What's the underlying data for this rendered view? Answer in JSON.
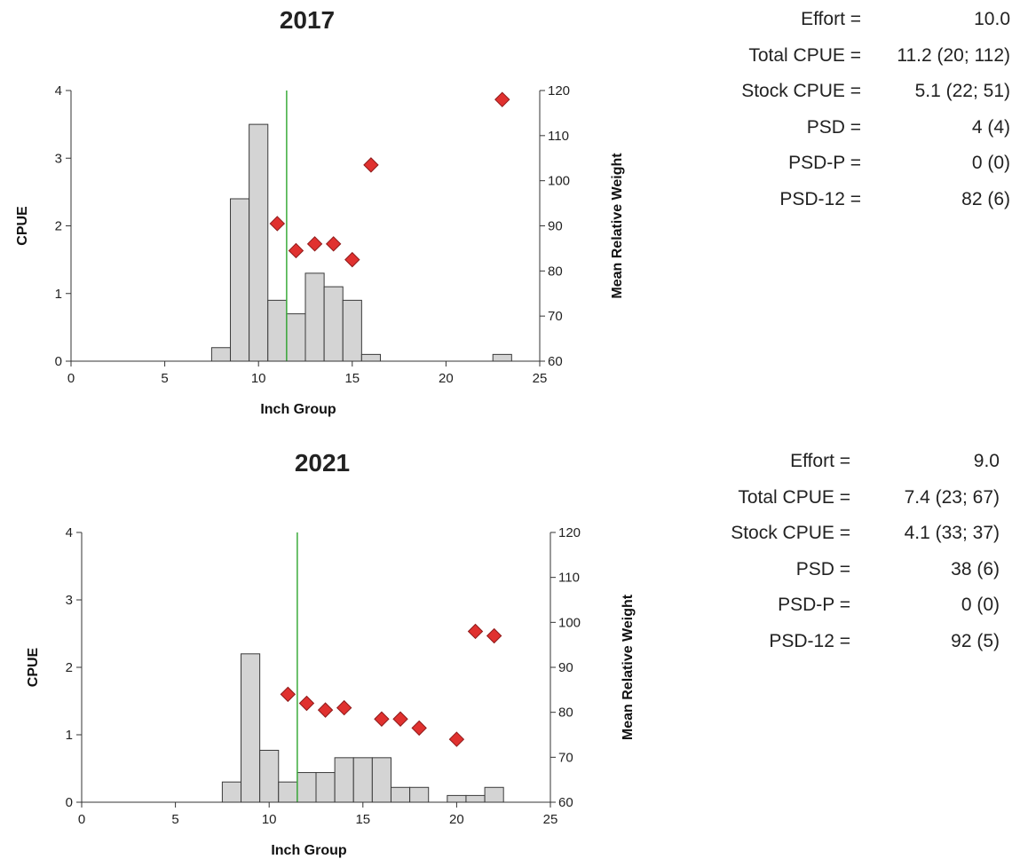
{
  "chart_data": [
    {
      "type": "bar",
      "title": "2017",
      "xlabel": "Inch Group",
      "ylabel": "CPUE",
      "y2label": "Mean Relative Weight",
      "xlim": [
        0,
        25
      ],
      "ylim": [
        0,
        4
      ],
      "y2lim": [
        60,
        120
      ],
      "xticks": [
        "0",
        "5",
        "10",
        "15",
        "20",
        "25"
      ],
      "yticks": [
        "0",
        "1",
        "2",
        "3",
        "4"
      ],
      "y2ticks": [
        "60",
        "70",
        "80",
        "90",
        "100",
        "110",
        "120"
      ],
      "reference_line_x": 11.5,
      "series": [
        {
          "kind": "bar",
          "axis": "CPUE",
          "x": [
            8,
            9,
            10,
            11,
            12,
            13,
            14,
            15,
            16,
            23
          ],
          "values": [
            0.2,
            2.4,
            3.5,
            0.9,
            0.7,
            1.3,
            1.1,
            0.9,
            0.1,
            0.1
          ]
        },
        {
          "kind": "scatter",
          "axis": "Mean Relative Weight",
          "x": [
            11,
            12,
            13,
            14,
            15,
            16,
            23
          ],
          "values": [
            90.5,
            84.5,
            86,
            86,
            82.5,
            103.5,
            118
          ]
        }
      ],
      "stats": [
        {
          "label": "Effort =",
          "value": "10.0"
        },
        {
          "label": "Total CPUE =",
          "value": "11.2 (20; 112)"
        },
        {
          "label": "Stock CPUE =",
          "value": "5.1 (22; 51)"
        },
        {
          "label": "PSD =",
          "value": "4 (4)"
        },
        {
          "label": "PSD-P =",
          "value": "0 (0)"
        },
        {
          "label": "PSD-12 =",
          "value": "82 (6)"
        }
      ]
    },
    {
      "type": "bar",
      "title": "2021",
      "xlabel": "Inch Group",
      "ylabel": "CPUE",
      "y2label": "Mean Relative Weight",
      "xlim": [
        0,
        25
      ],
      "ylim": [
        0,
        4
      ],
      "y2lim": [
        60,
        120
      ],
      "xticks": [
        "0",
        "5",
        "10",
        "15",
        "20",
        "25"
      ],
      "yticks": [
        "0",
        "1",
        "2",
        "3",
        "4"
      ],
      "y2ticks": [
        "60",
        "70",
        "80",
        "90",
        "100",
        "110",
        "120"
      ],
      "reference_line_x": 11.5,
      "series": [
        {
          "kind": "bar",
          "axis": "CPUE",
          "x": [
            8,
            9,
            10,
            11,
            12,
            13,
            14,
            15,
            16,
            17,
            18,
            20,
            21,
            22
          ],
          "values": [
            0.3,
            2.2,
            0.77,
            0.3,
            0.44,
            0.44,
            0.66,
            0.66,
            0.66,
            0.22,
            0.22,
            0.1,
            0.1,
            0.22
          ]
        },
        {
          "kind": "scatter",
          "axis": "Mean Relative Weight",
          "x": [
            11,
            12,
            13,
            14,
            16,
            17,
            18,
            20,
            21,
            22
          ],
          "values": [
            84,
            82,
            80.5,
            81,
            78.5,
            78.5,
            76.5,
            74,
            98,
            97
          ]
        }
      ],
      "stats": [
        {
          "label": "Effort =",
          "value": "9.0"
        },
        {
          "label": "Total CPUE =",
          "value": "7.4 (23; 67)"
        },
        {
          "label": "Stock CPUE =",
          "value": "4.1 (33; 37)"
        },
        {
          "label": "PSD =",
          "value": "38 (6)"
        },
        {
          "label": "PSD-P =",
          "value": "0 (0)"
        },
        {
          "label": "PSD-12 =",
          "value": "92 (5)"
        }
      ]
    }
  ]
}
